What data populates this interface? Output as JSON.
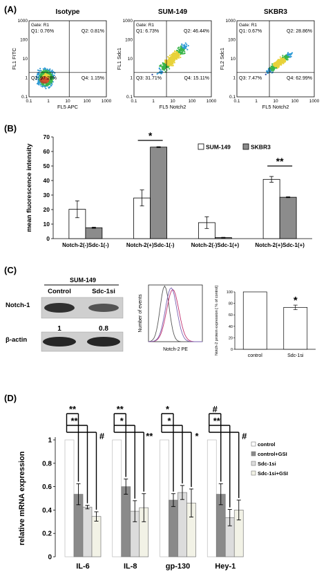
{
  "panel_a": {
    "label": "(A)",
    "plots": [
      {
        "title": "Isotype",
        "gate": "Gate: R1",
        "q1": "Q1: 0.76%",
        "q2": "Q2: 0.81%",
        "q3": "Q3: 97.28%",
        "q4": "Q4: 1.15%",
        "ylabel": "FL1 FITC",
        "xlabel": "FL5 APC"
      },
      {
        "title": "SUM-149",
        "gate": "Gate: R1",
        "q1": "Q1: 6.73%",
        "q2": "Q2: 46.44%",
        "q3": "Q3: 31.71%",
        "q4": "Q4: 15.11%",
        "ylabel": "FL1 Sdc1",
        "xlabel": "FL5 Notch2"
      },
      {
        "title": "SKBR3",
        "gate": "Gate: R1",
        "q1": "Q1: 0.67%",
        "q2": "Q2: 28.86%",
        "q3": "Q3: 7.47%",
        "q4": "Q4: 62.99%",
        "ylabel": "FL2 Sdc1",
        "xlabel": "FL5 Notch2"
      }
    ],
    "axis_ticks": [
      "0.1",
      "1",
      "10",
      "100",
      "1000"
    ]
  },
  "panel_b": {
    "label": "(B)",
    "sig1": "*",
    "sig2": "**"
  },
  "panel_c": {
    "label": "(C)",
    "blot_header": "SUM-149",
    "lane1": "Control",
    "lane2": "Sdc-1si",
    "row1": "Notch-1",
    "row2": "β-actin",
    "val1": "1",
    "val2": "0.8",
    "hist_ylabel": "Number of events",
    "hist_xlabel": "Notch-2 PE",
    "bar_ylabel": "Notch-2 protein expression [ % of control]",
    "bar_yticks": [
      "0",
      "20",
      "40",
      "60",
      "80",
      "100"
    ],
    "bar_sig": "*"
  },
  "panel_d": {
    "label": "(D)",
    "sigs": [
      "**",
      "**",
      "#",
      "**",
      "*",
      "**",
      "*",
      "*",
      "*",
      "#",
      "**",
      "#"
    ]
  },
  "chart_data": [
    {
      "type": "bar",
      "panel": "B",
      "ylabel": "mean fluorescence intensity",
      "ylim": [
        0,
        70
      ],
      "yticks": [
        0,
        10,
        20,
        30,
        40,
        50,
        60,
        70
      ],
      "categories": [
        "Notch-2(-)Sdc-1(-)",
        "Notch-2(+)Sdc-1(-)",
        "Notch-2(-)Sdc-1(+)",
        "Notch-2(+)Sdc-1(+)"
      ],
      "series": [
        {
          "name": "SUM-149",
          "color": "#ffffff",
          "values": [
            20.2,
            28,
            11,
            40.8
          ],
          "errors": [
            5.8,
            5.5,
            4,
            2
          ]
        },
        {
          "name": "SKBR3",
          "color": "#8c8c8c",
          "values": [
            7.5,
            63,
            0.7,
            28.5
          ],
          "errors": [
            0.4,
            0.3,
            0.2,
            0.3
          ]
        }
      ],
      "legend": "top-right"
    },
    {
      "type": "bar",
      "panel": "C",
      "categories": [
        "control",
        "Sdc-1si"
      ],
      "values": [
        100,
        73
      ],
      "errors": [
        0,
        4
      ],
      "ylim": [
        0,
        100
      ]
    },
    {
      "type": "bar",
      "panel": "D",
      "ylabel": "relative mRNA expression",
      "ylim": [
        0,
        1
      ],
      "yticks": [
        "0",
        "0.2",
        "0.4",
        "0.6",
        "0.8",
        "1"
      ],
      "categories": [
        "IL-6",
        "IL-8",
        "gp-130",
        "Hey-1"
      ],
      "series": [
        {
          "name": "control",
          "color": "#ffffff",
          "values": [
            1,
            1,
            1,
            1
          ],
          "errors": [
            0,
            0,
            0,
            0
          ]
        },
        {
          "name": "control+GSI",
          "color": "#8a8a8a",
          "values": [
            0.535,
            0.6,
            0.485,
            0.535
          ],
          "errors": [
            0.09,
            0.065,
            0.055,
            0.09
          ]
        },
        {
          "name": "Sdc-1si",
          "color": "#dcdcdc",
          "values": [
            0.425,
            0.39,
            0.55,
            0.335
          ],
          "errors": [
            0.015,
            0.09,
            0.06,
            0.07
          ]
        },
        {
          "name": "Sdc-1si+GSI",
          "color": "#f2f2e6",
          "values": [
            0.345,
            0.42,
            0.46,
            0.4
          ],
          "errors": [
            0.04,
            0.12,
            0.12,
            0.085
          ]
        }
      ],
      "legend": "right"
    }
  ]
}
